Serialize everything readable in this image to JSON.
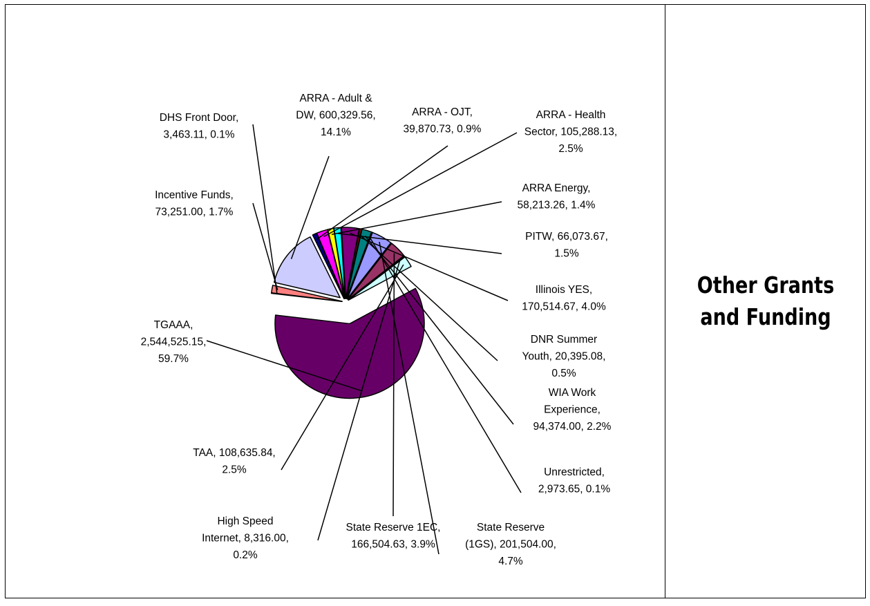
{
  "side_panel": {
    "title": "Other Grants\nand Funding"
  },
  "chart_data": {
    "type": "pie",
    "title": "",
    "exploded": true,
    "slices": [
      {
        "name": "TGAAA",
        "value": 2544525.15,
        "percent": 59.7,
        "color": "#660066",
        "label_lines": [
          "TGAAA,",
          "2,544,525.15,",
          "59.7%"
        ]
      },
      {
        "name": "DHS Front Door",
        "value": 3463.11,
        "percent": 0.1,
        "color": "#000080",
        "label_lines": [
          "DHS Front Door,",
          "3,463.11, 0.1%"
        ]
      },
      {
        "name": "Incentive Funds",
        "value": 73251.0,
        "percent": 1.7,
        "color": "#ff8080",
        "label_lines": [
          "Incentive Funds,",
          "73,251.00, 1.7%"
        ]
      },
      {
        "name": "ARRA - Adult & DW",
        "value": 600329.56,
        "percent": 14.1,
        "color": "#ccccff",
        "label_lines": [
          "ARRA - Adult &",
          "DW, 600,329.56,",
          "14.1%"
        ]
      },
      {
        "name": "ARRA - OJT",
        "value": 39870.73,
        "percent": 0.9,
        "color": "#000080",
        "label_lines": [
          "ARRA - OJT,",
          "39,870.73, 0.9%"
        ]
      },
      {
        "name": "ARRA - Health Sector",
        "value": 105288.13,
        "percent": 2.5,
        "color": "#ff00ff",
        "label_lines": [
          "ARRA - Health",
          "Sector, 105,288.13,",
          "2.5%"
        ]
      },
      {
        "name": "ARRA Energy",
        "value": 58213.26,
        "percent": 1.4,
        "color": "#ffff00",
        "label_lines": [
          "ARRA Energy,",
          "58,213.26, 1.4%"
        ]
      },
      {
        "name": "PITW",
        "value": 66073.67,
        "percent": 1.5,
        "color": "#00ffff",
        "label_lines": [
          "PITW, 66,073.67,",
          "1.5%"
        ]
      },
      {
        "name": "Illinois YES",
        "value": 170514.67,
        "percent": 4.0,
        "color": "#800080",
        "label_lines": [
          "Illinois YES,",
          "170,514.67, 4.0%"
        ]
      },
      {
        "name": "DNR Summer Youth",
        "value": 20395.08,
        "percent": 0.5,
        "color": "#800000",
        "label_lines": [
          "DNR Summer",
          "Youth, 20,395.08,",
          "0.5%"
        ]
      },
      {
        "name": "WIA Work Experience",
        "value": 94374.0,
        "percent": 2.2,
        "color": "#008080",
        "label_lines": [
          "WIA Work",
          "Experience,",
          "94,374.00, 2.2%"
        ]
      },
      {
        "name": "Unrestricted",
        "value": 2973.65,
        "percent": 0.1,
        "color": "#0000ff",
        "label_lines": [
          "Unrestricted,",
          "2,973.65, 0.1%"
        ]
      },
      {
        "name": "State Reserve (1GS)",
        "value": 201504.0,
        "percent": 4.7,
        "color": "#9999ff",
        "label_lines": [
          "State Reserve",
          "(1GS), 201,504.00,",
          "4.7%"
        ]
      },
      {
        "name": "State Reserve 1EC",
        "value": 166504.63,
        "percent": 3.9,
        "color": "#993366",
        "label_lines": [
          "State Reserve 1EC,",
          "166,504.63, 3.9%"
        ]
      },
      {
        "name": "High Speed Internet",
        "value": 8316.0,
        "percent": 0.2,
        "color": "#333333",
        "label_lines": [
          "High Speed",
          "Internet, 8,316.00,",
          "0.2%"
        ]
      },
      {
        "name": "TAA",
        "value": 108635.84,
        "percent": 2.5,
        "color": "#ccffff",
        "label_lines": [
          "TAA, 108,635.84,",
          "2.5%"
        ]
      }
    ]
  }
}
